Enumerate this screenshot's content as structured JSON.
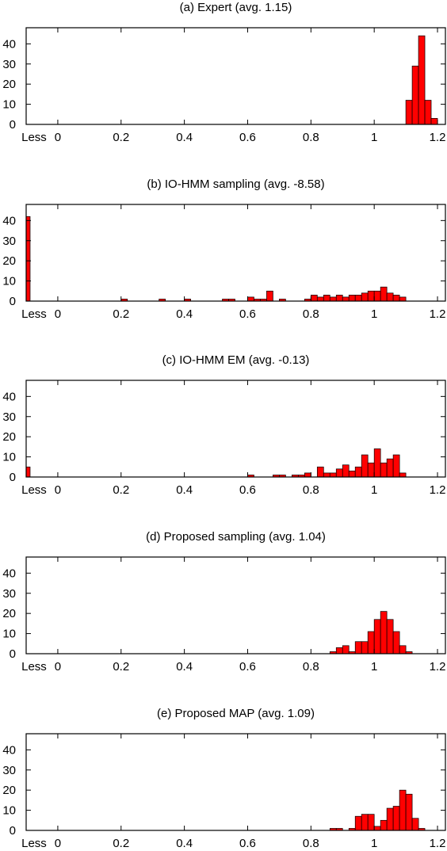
{
  "chart_data": [
    {
      "type": "bar",
      "title": "(a) Expert (avg. 1.15)",
      "bin_width": 0.02,
      "xlim": [
        -0.1,
        1.225
      ],
      "ylim": [
        0,
        48
      ],
      "xticks": [
        {
          "value": -0.075,
          "label": "Less"
        },
        {
          "value": 0,
          "label": "0"
        },
        {
          "value": 0.2,
          "label": "0.2"
        },
        {
          "value": 0.4,
          "label": "0.4"
        },
        {
          "value": 0.6,
          "label": "0.6"
        },
        {
          "value": 0.8,
          "label": "0.8"
        },
        {
          "value": 1,
          "label": "1"
        },
        {
          "value": 1.2,
          "label": "1.2"
        }
      ],
      "yticks": [
        0,
        10,
        20,
        30,
        40
      ],
      "grid": false,
      "legend": "none",
      "bar_color": "#ff0000",
      "less_count": 0,
      "bins": [
        {
          "x": 1.1,
          "count": 12
        },
        {
          "x": 1.12,
          "count": 29
        },
        {
          "x": 1.14,
          "count": 44
        },
        {
          "x": 1.16,
          "count": 12
        },
        {
          "x": 1.18,
          "count": 3
        }
      ]
    },
    {
      "type": "bar",
      "title": "(b) IO-HMM sampling (avg. -8.58)",
      "bin_width": 0.02,
      "xlim": [
        -0.1,
        1.225
      ],
      "ylim": [
        0,
        48
      ],
      "xticks": [
        {
          "value": -0.075,
          "label": "Less"
        },
        {
          "value": 0,
          "label": "0"
        },
        {
          "value": 0.2,
          "label": "0.2"
        },
        {
          "value": 0.4,
          "label": "0.4"
        },
        {
          "value": 0.6,
          "label": "0.6"
        },
        {
          "value": 0.8,
          "label": "0.8"
        },
        {
          "value": 1,
          "label": "1"
        },
        {
          "value": 1.2,
          "label": "1.2"
        }
      ],
      "yticks": [
        0,
        10,
        20,
        30,
        40
      ],
      "grid": false,
      "legend": "none",
      "bar_color": "#ff0000",
      "less_count": 42,
      "bins": [
        {
          "x": 0.2,
          "count": 1
        },
        {
          "x": 0.32,
          "count": 1
        },
        {
          "x": 0.4,
          "count": 1
        },
        {
          "x": 0.52,
          "count": 1
        },
        {
          "x": 0.54,
          "count": 1
        },
        {
          "x": 0.6,
          "count": 2
        },
        {
          "x": 0.62,
          "count": 1
        },
        {
          "x": 0.64,
          "count": 1
        },
        {
          "x": 0.66,
          "count": 5
        },
        {
          "x": 0.7,
          "count": 1
        },
        {
          "x": 0.78,
          "count": 1
        },
        {
          "x": 0.8,
          "count": 3
        },
        {
          "x": 0.82,
          "count": 2
        },
        {
          "x": 0.84,
          "count": 3
        },
        {
          "x": 0.86,
          "count": 2
        },
        {
          "x": 0.88,
          "count": 3
        },
        {
          "x": 0.9,
          "count": 2
        },
        {
          "x": 0.92,
          "count": 3
        },
        {
          "x": 0.94,
          "count": 3
        },
        {
          "x": 0.96,
          "count": 4
        },
        {
          "x": 0.98,
          "count": 5
        },
        {
          "x": 1.0,
          "count": 5
        },
        {
          "x": 1.02,
          "count": 7
        },
        {
          "x": 1.04,
          "count": 4
        },
        {
          "x": 1.06,
          "count": 3
        },
        {
          "x": 1.08,
          "count": 2
        }
      ]
    },
    {
      "type": "bar",
      "title": "(c) IO-HMM EM (avg. -0.13)",
      "bin_width": 0.02,
      "xlim": [
        -0.1,
        1.225
      ],
      "ylim": [
        0,
        48
      ],
      "xticks": [
        {
          "value": -0.075,
          "label": "Less"
        },
        {
          "value": 0,
          "label": "0"
        },
        {
          "value": 0.2,
          "label": "0.2"
        },
        {
          "value": 0.4,
          "label": "0.4"
        },
        {
          "value": 0.6,
          "label": "0.6"
        },
        {
          "value": 0.8,
          "label": "0.8"
        },
        {
          "value": 1,
          "label": "1"
        },
        {
          "value": 1.2,
          "label": "1.2"
        }
      ],
      "yticks": [
        0,
        10,
        20,
        30,
        40
      ],
      "grid": false,
      "legend": "none",
      "bar_color": "#ff0000",
      "less_count": 5,
      "bins": [
        {
          "x": 0.6,
          "count": 1
        },
        {
          "x": 0.68,
          "count": 1
        },
        {
          "x": 0.7,
          "count": 1
        },
        {
          "x": 0.74,
          "count": 1
        },
        {
          "x": 0.76,
          "count": 1
        },
        {
          "x": 0.78,
          "count": 2
        },
        {
          "x": 0.82,
          "count": 5
        },
        {
          "x": 0.84,
          "count": 2
        },
        {
          "x": 0.86,
          "count": 2
        },
        {
          "x": 0.88,
          "count": 4
        },
        {
          "x": 0.9,
          "count": 6
        },
        {
          "x": 0.92,
          "count": 3
        },
        {
          "x": 0.94,
          "count": 5
        },
        {
          "x": 0.96,
          "count": 11
        },
        {
          "x": 0.98,
          "count": 7
        },
        {
          "x": 1.0,
          "count": 14
        },
        {
          "x": 1.02,
          "count": 7
        },
        {
          "x": 1.04,
          "count": 9
        },
        {
          "x": 1.06,
          "count": 11
        },
        {
          "x": 1.08,
          "count": 2
        }
      ]
    },
    {
      "type": "bar",
      "title": "(d) Proposed sampling (avg. 1.04)",
      "bin_width": 0.02,
      "xlim": [
        -0.1,
        1.225
      ],
      "ylim": [
        0,
        48
      ],
      "xticks": [
        {
          "value": -0.075,
          "label": "Less"
        },
        {
          "value": 0,
          "label": "0"
        },
        {
          "value": 0.2,
          "label": "0.2"
        },
        {
          "value": 0.4,
          "label": "0.4"
        },
        {
          "value": 0.6,
          "label": "0.6"
        },
        {
          "value": 0.8,
          "label": "0.8"
        },
        {
          "value": 1,
          "label": "1"
        },
        {
          "value": 1.2,
          "label": "1.2"
        }
      ],
      "yticks": [
        0,
        10,
        20,
        30,
        40
      ],
      "grid": false,
      "legend": "none",
      "bar_color": "#ff0000",
      "less_count": 0,
      "bins": [
        {
          "x": 0.86,
          "count": 1
        },
        {
          "x": 0.88,
          "count": 3
        },
        {
          "x": 0.9,
          "count": 4
        },
        {
          "x": 0.92,
          "count": 1
        },
        {
          "x": 0.94,
          "count": 6
        },
        {
          "x": 0.96,
          "count": 6
        },
        {
          "x": 0.98,
          "count": 11
        },
        {
          "x": 1.0,
          "count": 17
        },
        {
          "x": 1.02,
          "count": 21
        },
        {
          "x": 1.04,
          "count": 17
        },
        {
          "x": 1.06,
          "count": 11
        },
        {
          "x": 1.08,
          "count": 4
        },
        {
          "x": 1.1,
          "count": 1
        }
      ]
    },
    {
      "type": "bar",
      "title": "(e) Proposed MAP (avg. 1.09)",
      "bin_width": 0.02,
      "xlim": [
        -0.1,
        1.225
      ],
      "ylim": [
        0,
        48
      ],
      "xticks": [
        {
          "value": -0.075,
          "label": "Less"
        },
        {
          "value": 0,
          "label": "0"
        },
        {
          "value": 0.2,
          "label": "0.2"
        },
        {
          "value": 0.4,
          "label": "0.4"
        },
        {
          "value": 0.6,
          "label": "0.6"
        },
        {
          "value": 0.8,
          "label": "0.8"
        },
        {
          "value": 1,
          "label": "1"
        },
        {
          "value": 1.2,
          "label": "1.2"
        }
      ],
      "yticks": [
        0,
        10,
        20,
        30,
        40
      ],
      "grid": false,
      "legend": "none",
      "bar_color": "#ff0000",
      "less_count": 0,
      "bins": [
        {
          "x": 0.86,
          "count": 1
        },
        {
          "x": 0.88,
          "count": 1
        },
        {
          "x": 0.92,
          "count": 1
        },
        {
          "x": 0.94,
          "count": 7
        },
        {
          "x": 0.96,
          "count": 8
        },
        {
          "x": 0.98,
          "count": 8
        },
        {
          "x": 1.0,
          "count": 2
        },
        {
          "x": 1.02,
          "count": 5
        },
        {
          "x": 1.04,
          "count": 11
        },
        {
          "x": 1.06,
          "count": 12
        },
        {
          "x": 1.08,
          "count": 20
        },
        {
          "x": 1.1,
          "count": 18
        },
        {
          "x": 1.12,
          "count": 6
        },
        {
          "x": 1.14,
          "count": 1
        }
      ]
    }
  ]
}
